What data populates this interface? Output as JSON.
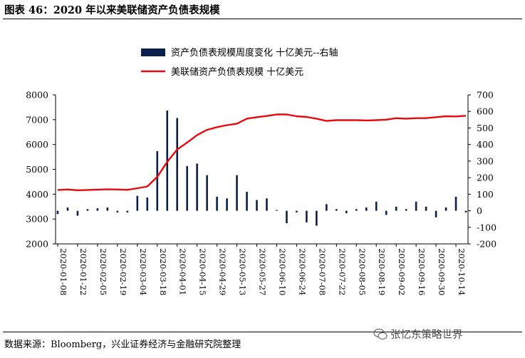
{
  "header": {
    "title": "图表 46：2020 年以来美联储资产负债表规模"
  },
  "footer": {
    "source": "数据来源：Bloomberg，兴业证券经济与金融研究院整理",
    "watermark": "张忆东策略世界"
  },
  "chart_data": {
    "type": "bar+line",
    "legend_placement": "top-center",
    "grid": false,
    "y_left": {
      "min": 2000,
      "max": 8000,
      "ticks": [
        2000,
        3000,
        4000,
        5000,
        6000,
        7000,
        8000
      ]
    },
    "y_right": {
      "min": -200,
      "max": 700,
      "ticks": [
        -200,
        -100,
        0,
        100,
        200,
        300,
        400,
        500,
        600,
        700
      ]
    },
    "x_tick_labels": [
      "2020-01-08",
      "2020-01-22",
      "2020-02-05",
      "2020-02-19",
      "2020-03-04",
      "2020-03-18",
      "2020-04-01",
      "2020-04-15",
      "2020-04-29",
      "2020-05-13",
      "2020-05-27",
      "2020-06-10",
      "2020-06-24",
      "2020-07-08",
      "2020-07-22",
      "2020-08-05",
      "2020-08-19",
      "2020-09-02",
      "2020-09-16",
      "2020-09-30",
      "2020-10-14"
    ],
    "x": [
      "2020-01-08",
      "2020-01-15",
      "2020-01-22",
      "2020-01-29",
      "2020-02-05",
      "2020-02-12",
      "2020-02-19",
      "2020-02-26",
      "2020-03-04",
      "2020-03-11",
      "2020-03-18",
      "2020-03-25",
      "2020-04-01",
      "2020-04-08",
      "2020-04-15",
      "2020-04-22",
      "2020-04-29",
      "2020-05-06",
      "2020-05-13",
      "2020-05-20",
      "2020-05-27",
      "2020-06-03",
      "2020-06-10",
      "2020-06-17",
      "2020-06-24",
      "2020-07-01",
      "2020-07-08",
      "2020-07-15",
      "2020-07-22",
      "2020-07-29",
      "2020-08-05",
      "2020-08-12",
      "2020-08-19",
      "2020-08-26",
      "2020-09-02",
      "2020-09-09",
      "2020-09-16",
      "2020-09-23",
      "2020-09-30",
      "2020-10-07",
      "2020-10-14",
      "2020-10-21"
    ],
    "series": [
      {
        "name": "资产负债表规模周度变化  十亿美元--右轴",
        "kind": "bar",
        "axis": "right",
        "color": "#0b1f4d",
        "values": [
          -20,
          20,
          -30,
          10,
          15,
          20,
          -10,
          -10,
          90,
          80,
          360,
          605,
          560,
          270,
          285,
          215,
          85,
          75,
          215,
          115,
          65,
          75,
          5,
          -75,
          -10,
          -70,
          -90,
          40,
          10,
          -15,
          10,
          20,
          55,
          -25,
          25,
          10,
          55,
          25,
          -40,
          20,
          85,
          -10
        ]
      },
      {
        "name": "美联储资产负债表规模  十亿美元",
        "kind": "line",
        "axis": "left",
        "color": "#e8090f",
        "values": [
          4170,
          4190,
          4160,
          4170,
          4185,
          4200,
          4190,
          4175,
          4240,
          4310,
          4700,
          5300,
          5800,
          6080,
          6380,
          6590,
          6700,
          6780,
          6840,
          7040,
          7100,
          7150,
          7210,
          7210,
          7140,
          7110,
          7040,
          6950,
          6980,
          6980,
          6980,
          6970,
          6980,
          7000,
          7060,
          7040,
          7060,
          7060,
          7100,
          7140,
          7130,
          7160
        ]
      }
    ]
  }
}
